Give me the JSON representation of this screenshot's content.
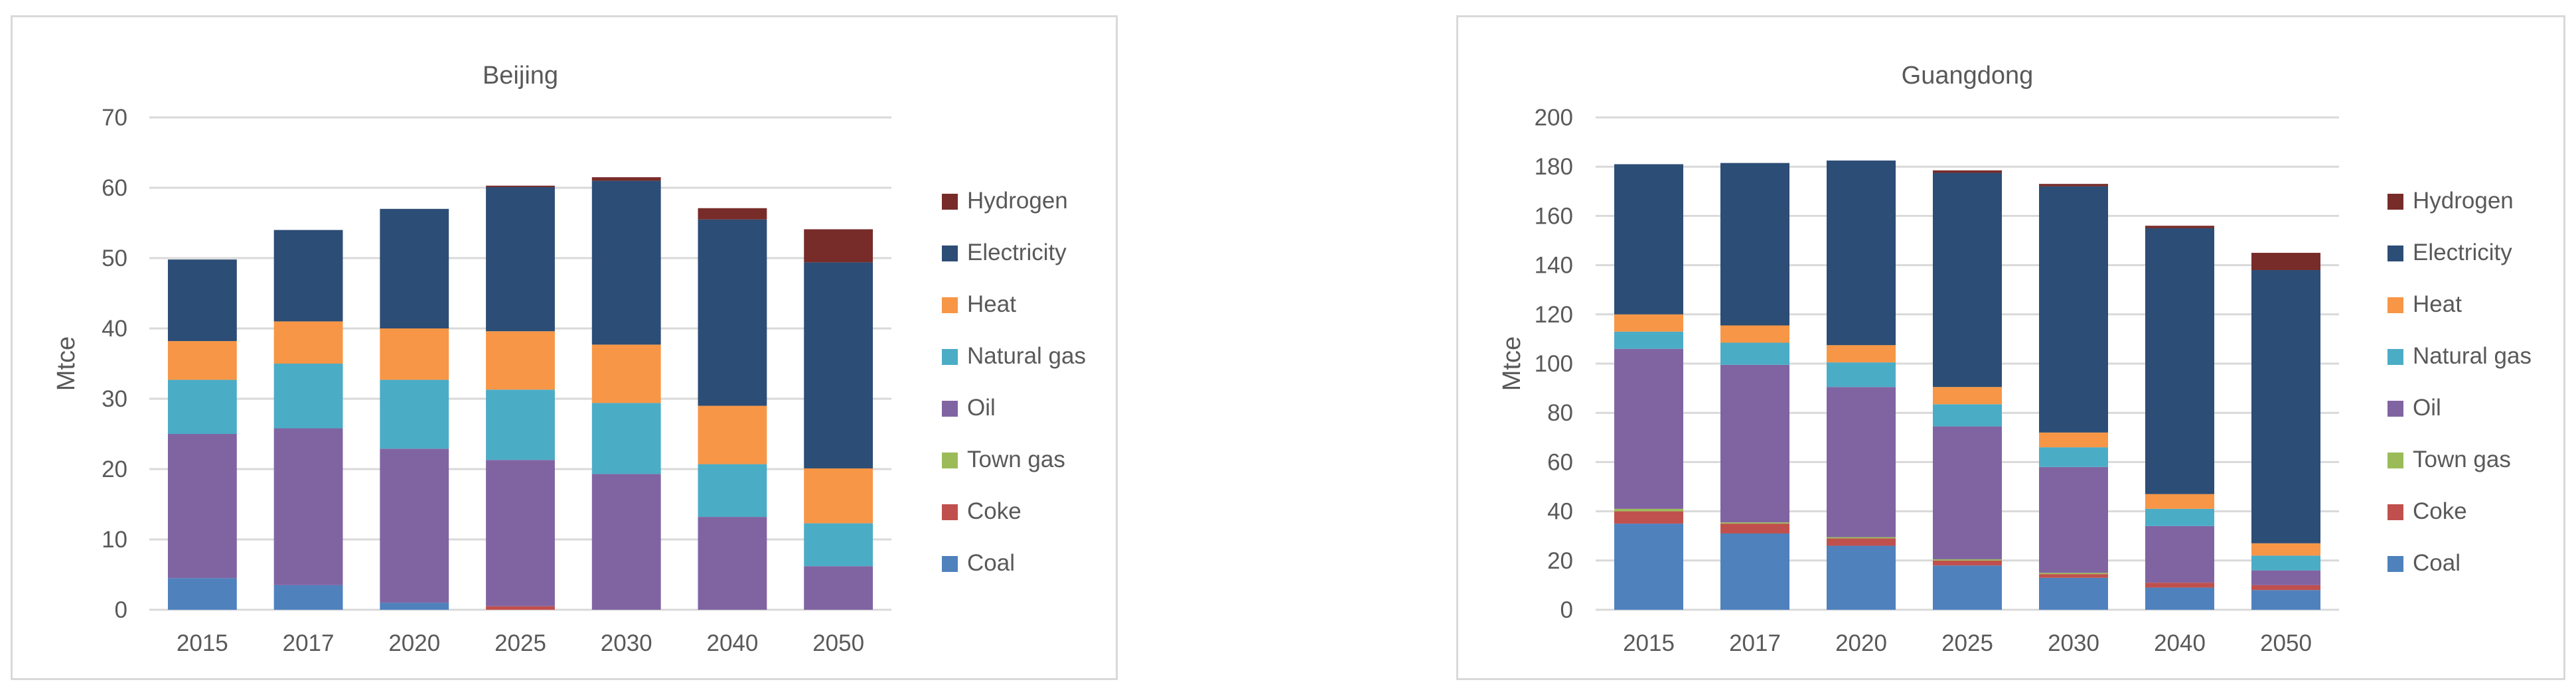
{
  "chart_data": [
    {
      "type": "bar",
      "stacked": true,
      "title": "Beijing",
      "xlabel": "",
      "ylabel": "Mtce",
      "ylim": [
        0,
        70
      ],
      "yticks": [
        0,
        10,
        20,
        30,
        40,
        50,
        60,
        70
      ],
      "grid": true,
      "legend_position": "right",
      "categories": [
        "2015",
        "2017",
        "2020",
        "2025",
        "2030",
        "2040",
        "2050"
      ],
      "series": [
        {
          "name": "Coal",
          "color": "#4f81bd",
          "values": [
            4.5,
            3.5,
            1.0,
            0.0,
            0.0,
            0.0,
            0.0
          ]
        },
        {
          "name": "Coke",
          "color": "#c0504d",
          "values": [
            0.0,
            0.0,
            0.0,
            0.5,
            0.0,
            0.0,
            0.0
          ]
        },
        {
          "name": "Town gas",
          "color": "#9bbb59",
          "values": [
            0.0,
            0.0,
            0.0,
            0.0,
            0.0,
            0.0,
            0.0
          ]
        },
        {
          "name": "Oil",
          "color": "#8064a2",
          "values": [
            20.5,
            22.3,
            21.9,
            20.8,
            19.3,
            13.2,
            6.2
          ]
        },
        {
          "name": "Natural gas",
          "color": "#4bacc6",
          "values": [
            7.7,
            9.2,
            9.8,
            10.0,
            10.1,
            7.5,
            6.1
          ]
        },
        {
          "name": "Heat",
          "color": "#f79646",
          "values": [
            5.5,
            6.0,
            7.3,
            8.3,
            8.3,
            8.3,
            7.8
          ]
        },
        {
          "name": "Electricity",
          "color": "#2c4d75",
          "values": [
            11.6,
            13.0,
            17.0,
            20.5,
            23.3,
            26.5,
            29.3
          ]
        },
        {
          "name": "Hydrogen",
          "color": "#772c2a",
          "values": [
            0.0,
            0.0,
            0.0,
            0.2,
            0.5,
            1.6,
            4.7
          ]
        }
      ]
    },
    {
      "type": "bar",
      "stacked": true,
      "title": "Guangdong",
      "xlabel": "",
      "ylabel": "Mtce",
      "ylim": [
        0,
        200
      ],
      "yticks": [
        0,
        20,
        40,
        60,
        80,
        100,
        120,
        140,
        160,
        180,
        200
      ],
      "grid": true,
      "legend_position": "right",
      "categories": [
        "2015",
        "2017",
        "2020",
        "2025",
        "2030",
        "2040",
        "2050"
      ],
      "series": [
        {
          "name": "Coal",
          "color": "#4f81bd",
          "values": [
            35,
            31,
            26,
            18,
            13,
            9,
            8
          ]
        },
        {
          "name": "Coke",
          "color": "#c0504d",
          "values": [
            5,
            4,
            3,
            2,
            1.5,
            2,
            2
          ]
        },
        {
          "name": "Town gas",
          "color": "#9bbb59",
          "values": [
            1,
            0.5,
            0.5,
            0.5,
            0.5,
            0,
            0
          ]
        },
        {
          "name": "Oil",
          "color": "#8064a2",
          "values": [
            65,
            64,
            61,
            54,
            43,
            23,
            6
          ]
        },
        {
          "name": "Natural gas",
          "color": "#4bacc6",
          "values": [
            7,
            9,
            10,
            9,
            8,
            7,
            6
          ]
        },
        {
          "name": "Heat",
          "color": "#f79646",
          "values": [
            7,
            7,
            7,
            7,
            6,
            6,
            5
          ]
        },
        {
          "name": "Electricity",
          "color": "#2c4d75",
          "values": [
            61,
            66,
            75,
            87,
            100,
            108,
            111
          ]
        },
        {
          "name": "Hydrogen",
          "color": "#772c2a",
          "values": [
            0,
            0,
            0,
            1,
            1,
            1,
            7
          ]
        }
      ]
    }
  ]
}
